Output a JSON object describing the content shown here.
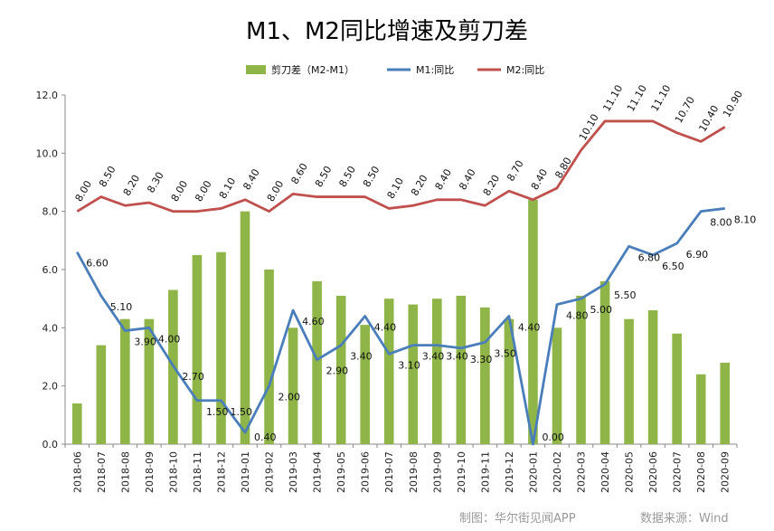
{
  "chart_data": {
    "type": "bar",
    "title": "M1、M2同比增速及剪刀差",
    "categories": [
      "2018-06",
      "2018-07",
      "2018-08",
      "2018-09",
      "2018-10",
      "2018-11",
      "2018-12",
      "2019-01",
      "2019-02",
      "2019-03",
      "2019-04",
      "2019-05",
      "2019-06",
      "2019-07",
      "2019-08",
      "2019-09",
      "2019-10",
      "2019-11",
      "2019-12",
      "2020-01",
      "2020-02",
      "2020-03",
      "2020-04",
      "2020-05",
      "2020-06",
      "2020-07",
      "2020-08",
      "2020-09"
    ],
    "ylim": [
      0,
      12
    ],
    "yticks": [
      "0.0",
      "2.0",
      "4.0",
      "6.0",
      "8.0",
      "10.0",
      "12.0"
    ],
    "legend_position": "top",
    "grid": false,
    "series": [
      {
        "name": "剪刀差（M2-M1）",
        "kind": "bar",
        "color": "#8fb548",
        "values": [
          1.4,
          3.4,
          4.3,
          4.3,
          5.3,
          6.5,
          6.6,
          8.0,
          6.0,
          4.0,
          5.6,
          5.1,
          4.1,
          5.0,
          4.8,
          5.0,
          5.1,
          4.7,
          4.3,
          8.4,
          4.0,
          5.1,
          5.6,
          4.3,
          4.6,
          3.8,
          2.4,
          2.8
        ]
      },
      {
        "name": "M1:同比",
        "kind": "line",
        "color": "#4a7ebb",
        "values": [
          6.6,
          5.1,
          3.9,
          4.0,
          2.7,
          1.5,
          1.5,
          0.4,
          2.0,
          4.6,
          2.9,
          3.4,
          4.4,
          3.1,
          3.4,
          3.4,
          3.3,
          3.5,
          4.4,
          0.0,
          4.8,
          5.0,
          5.5,
          6.8,
          6.5,
          6.9,
          8.0,
          8.1
        ],
        "labels": [
          "6.60",
          "5.10",
          "3.90",
          "4.00",
          "2.70",
          "1.50",
          "1.50",
          "0.40",
          "2.00",
          "4.60",
          "2.90",
          "3.40",
          "4.40",
          "3.10",
          "3.40",
          "3.40",
          "3.30",
          "3.50",
          "4.40",
          "0.00",
          "4.80",
          "5.00",
          "5.50",
          "6.80",
          "6.50",
          "6.90",
          "8.00",
          "8.10"
        ]
      },
      {
        "name": "M2:同比",
        "kind": "line",
        "color": "#c0504d",
        "values": [
          8.0,
          8.5,
          8.2,
          8.3,
          8.0,
          8.0,
          8.1,
          8.4,
          8.0,
          8.6,
          8.5,
          8.5,
          8.5,
          8.1,
          8.2,
          8.4,
          8.4,
          8.2,
          8.7,
          8.4,
          8.8,
          10.1,
          11.1,
          11.1,
          11.1,
          10.7,
          10.4,
          10.9
        ],
        "labels": [
          "8.00",
          "8.50",
          "8.20",
          "8.30",
          "8.00",
          "8.00",
          "8.10",
          "8.40",
          "8.00",
          "8.60",
          "8.50",
          "8.50",
          "8.50",
          "8.10",
          "8.20",
          "8.40",
          "8.40",
          "8.20",
          "8.70",
          "8.40",
          "8.80",
          "10.10",
          "11.10",
          "11.10",
          "11.10",
          "10.70",
          "10.40",
          "10.90"
        ]
      }
    ]
  },
  "footer": {
    "credit": "制图：华尔街见闻APP",
    "source": "数据来源：Wind"
  }
}
